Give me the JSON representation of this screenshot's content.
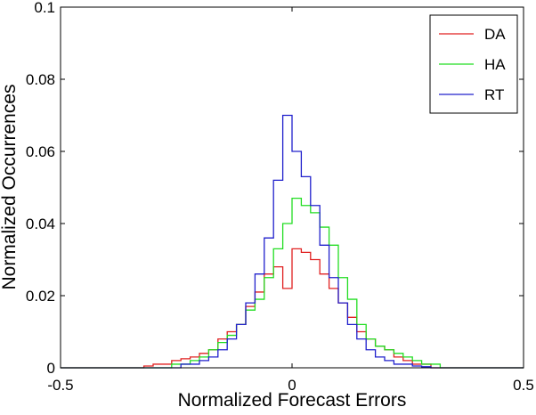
{
  "chart_data": {
    "type": "line",
    "step": true,
    "xlabel": "Normalized Forecast Errors",
    "ylabel": "Normalized Occurrences",
    "xlim": [
      -0.5,
      0.5
    ],
    "ylim": [
      0,
      0.1
    ],
    "xticks": [
      -0.5,
      0,
      0.5
    ],
    "xtick_labels": [
      "-0.5",
      "0",
      "0.5"
    ],
    "yticks": [
      0,
      0.02,
      0.04,
      0.06,
      0.08,
      0.1
    ],
    "ytick_labels": [
      "0",
      "0.02",
      "0.04",
      "0.06",
      "0.08",
      "0.1"
    ],
    "grid": false,
    "legend_position": "top-right",
    "x": [
      -0.49,
      -0.47,
      -0.45,
      -0.43,
      -0.41,
      -0.39,
      -0.37,
      -0.35,
      -0.33,
      -0.31,
      -0.29,
      -0.27,
      -0.25,
      -0.23,
      -0.21,
      -0.19,
      -0.17,
      -0.15,
      -0.13,
      -0.11,
      -0.09,
      -0.07,
      -0.05,
      -0.03,
      -0.01,
      0.01,
      0.03,
      0.05,
      0.07,
      0.09,
      0.11,
      0.13,
      0.15,
      0.17,
      0.19,
      0.21,
      0.23,
      0.25,
      0.27,
      0.29,
      0.31,
      0.33,
      0.35,
      0.37,
      0.39,
      0.41,
      0.43,
      0.45,
      0.47,
      0.49
    ],
    "series": [
      {
        "name": "DA",
        "color": "#e02020",
        "values": [
          0,
          0,
          0,
          0,
          0,
          0,
          0,
          0,
          0,
          0.0005,
          0.001,
          0.001,
          0.002,
          0.0025,
          0.003,
          0.004,
          0.005,
          0.008,
          0.01,
          0.012,
          0.017,
          0.021,
          0.026,
          0.028,
          0.022,
          0.033,
          0.032,
          0.03,
          0.026,
          0.022,
          0.018,
          0.014,
          0.01,
          0.008,
          0.006,
          0.005,
          0.003,
          0.002,
          0.001,
          0.001,
          0,
          0,
          0,
          0,
          0,
          0,
          0,
          0,
          0,
          0
        ]
      },
      {
        "name": "HA",
        "color": "#22dd22",
        "values": [
          0,
          0,
          0,
          0,
          0,
          0,
          0,
          0,
          0,
          0,
          0,
          0,
          0.001,
          0.001,
          0.002,
          0.003,
          0.005,
          0.007,
          0.009,
          0.012,
          0.016,
          0.019,
          0.025,
          0.033,
          0.04,
          0.047,
          0.045,
          0.043,
          0.039,
          0.034,
          0.025,
          0.019,
          0.012,
          0.008,
          0.006,
          0.005,
          0.004,
          0.003,
          0.002,
          0.001,
          0.001,
          0,
          0,
          0,
          0,
          0,
          0,
          0,
          0,
          0
        ]
      },
      {
        "name": "RT",
        "color": "#2020cc",
        "values": [
          0,
          0,
          0,
          0,
          0,
          0,
          0,
          0,
          0,
          0,
          0,
          0,
          0,
          0.001,
          0.001,
          0.002,
          0.003,
          0.005,
          0.008,
          0.012,
          0.018,
          0.026,
          0.036,
          0.052,
          0.07,
          0.06,
          0.053,
          0.045,
          0.034,
          0.025,
          0.018,
          0.012,
          0.008,
          0.005,
          0.003,
          0.002,
          0.001,
          0.001,
          0.0005,
          0.0003,
          0,
          0,
          0,
          0,
          0,
          0,
          0,
          0,
          0,
          0
        ]
      }
    ]
  }
}
